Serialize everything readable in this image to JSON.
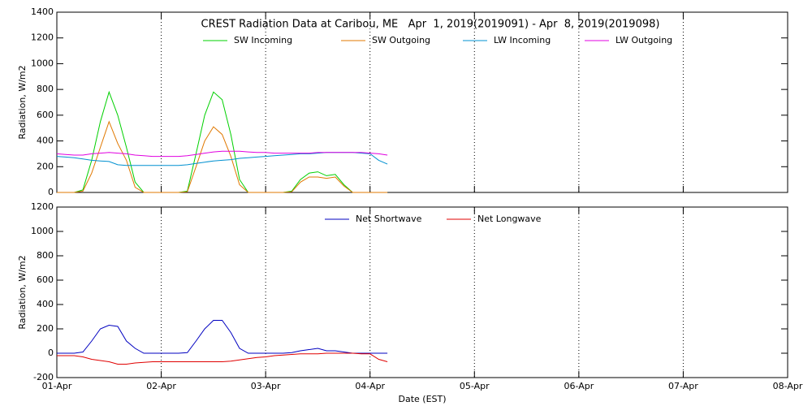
{
  "chart_data": [
    {
      "type": "line",
      "title": "CREST Radiation Data at Caribou, ME   Apr  1, 2019(2019091) - Apr  8, 2019(2019098)",
      "ylabel": "Radiation, W/m2",
      "x": [
        0,
        2,
        4,
        6,
        8,
        10,
        12,
        14,
        16,
        18,
        20,
        22,
        24,
        26,
        28,
        30,
        32,
        34,
        36,
        38,
        40,
        42,
        44,
        46,
        48,
        50,
        52,
        54,
        56,
        58,
        60,
        62,
        64,
        66,
        68,
        70,
        72,
        74,
        76
      ],
      "series": [
        {
          "name": "SW Incoming",
          "color": "#00d000",
          "values": [
            0,
            0,
            0,
            20,
            250,
            550,
            780,
            600,
            350,
            80,
            0,
            0,
            0,
            0,
            0,
            10,
            300,
            600,
            780,
            720,
            450,
            100,
            0,
            0,
            0,
            0,
            0,
            10,
            100,
            150,
            160,
            130,
            140,
            60,
            0,
            0,
            0,
            0,
            0
          ]
        },
        {
          "name": "SW Outgoing",
          "color": "#e07800",
          "values": [
            0,
            0,
            0,
            10,
            150,
            350,
            550,
            380,
            250,
            40,
            0,
            0,
            0,
            0,
            0,
            5,
            200,
            400,
            510,
            450,
            280,
            60,
            0,
            0,
            0,
            0,
            0,
            5,
            80,
            120,
            120,
            110,
            120,
            50,
            0,
            0,
            0,
            0,
            0
          ]
        },
        {
          "name": "LW Incoming",
          "color": "#0090d0",
          "values": [
            280,
            275,
            270,
            260,
            250,
            245,
            240,
            215,
            210,
            210,
            210,
            210,
            210,
            210,
            210,
            215,
            225,
            235,
            245,
            250,
            255,
            265,
            270,
            275,
            280,
            285,
            290,
            295,
            300,
            300,
            305,
            310,
            310,
            310,
            310,
            305,
            300,
            250,
            220
          ]
        },
        {
          "name": "LW Outgoing",
          "color": "#e000e0",
          "values": [
            300,
            295,
            290,
            290,
            300,
            305,
            310,
            305,
            300,
            290,
            285,
            280,
            280,
            280,
            280,
            285,
            295,
            305,
            315,
            320,
            320,
            320,
            315,
            310,
            310,
            305,
            305,
            305,
            305,
            305,
            310,
            310,
            310,
            310,
            310,
            310,
            305,
            300,
            290
          ]
        }
      ],
      "xlim": [
        0,
        168
      ],
      "xticks": [
        0,
        24,
        48,
        72,
        96,
        120,
        144,
        168
      ],
      "xtick_labels": false,
      "ylim": [
        0,
        1400
      ],
      "yticks": [
        0,
        200,
        400,
        600,
        800,
        1000,
        1200,
        1400
      ],
      "grid": "x"
    },
    {
      "type": "line",
      "xlabel": "Date (EST)",
      "ylabel": "Radiation, W/m2",
      "x": [
        0,
        2,
        4,
        6,
        8,
        10,
        12,
        14,
        16,
        18,
        20,
        22,
        24,
        26,
        28,
        30,
        32,
        34,
        36,
        38,
        40,
        42,
        44,
        46,
        48,
        50,
        52,
        54,
        56,
        58,
        60,
        62,
        64,
        66,
        68,
        70,
        72,
        74,
        76
      ],
      "series": [
        {
          "name": "Net Shortwave",
          "color": "#0000c0",
          "values": [
            0,
            0,
            0,
            10,
            100,
            200,
            230,
            220,
            100,
            40,
            0,
            0,
            0,
            0,
            0,
            5,
            100,
            200,
            270,
            270,
            170,
            40,
            0,
            0,
            0,
            0,
            0,
            5,
            20,
            30,
            40,
            20,
            20,
            10,
            0,
            0,
            0,
            0,
            0
          ]
        },
        {
          "name": "Net Longwave",
          "color": "#e00000",
          "values": [
            -20,
            -20,
            -20,
            -30,
            -50,
            -60,
            -70,
            -90,
            -90,
            -80,
            -75,
            -70,
            -70,
            -70,
            -70,
            -70,
            -70,
            -70,
            -70,
            -70,
            -65,
            -55,
            -45,
            -35,
            -30,
            -20,
            -15,
            -10,
            -5,
            -5,
            -5,
            0,
            0,
            0,
            0,
            -5,
            -5,
            -50,
            -70
          ]
        }
      ],
      "xlim": [
        0,
        168
      ],
      "xticks": [
        {
          "value": 0,
          "label": "01-Apr"
        },
        {
          "value": 24,
          "label": "02-Apr"
        },
        {
          "value": 48,
          "label": "03-Apr"
        },
        {
          "value": 72,
          "label": "04-Apr"
        },
        {
          "value": 96,
          "label": "05-Apr"
        },
        {
          "value": 120,
          "label": "06-Apr"
        },
        {
          "value": 144,
          "label": "07-Apr"
        },
        {
          "value": 168,
          "label": "08-Apr"
        }
      ],
      "xtick_labels": true,
      "ylim": [
        -200,
        1200
      ],
      "yticks": [
        -200,
        0,
        200,
        400,
        600,
        800,
        1000,
        1200
      ],
      "grid": "x"
    }
  ]
}
